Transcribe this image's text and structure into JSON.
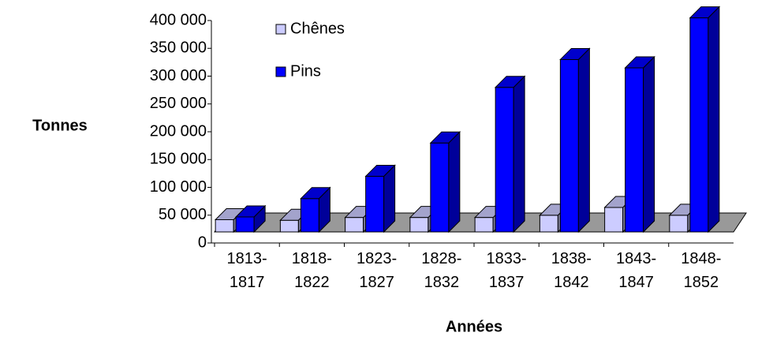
{
  "chart_data": {
    "type": "bar3d",
    "x_label": "Années",
    "y_label": "Tonnes",
    "categories": [
      "1813-1817",
      "1818-1822",
      "1823-1827",
      "1828-1832",
      "1833-1837",
      "1838-1842",
      "1843-1847",
      "1848-1852"
    ],
    "series": [
      {
        "name": "Chênes",
        "color": "#ccccff",
        "values": [
          22000,
          21000,
          26000,
          26000,
          26000,
          30000,
          44000,
          30000
        ]
      },
      {
        "name": "Pins",
        "color": "#0000ff",
        "values": [
          27000,
          60000,
          100000,
          160000,
          260000,
          310000,
          295000,
          385000
        ]
      }
    ],
    "ylim": [
      0,
      400000
    ],
    "yticks": [
      0,
      {
        "value": 50000,
        "label": "50 000"
      },
      {
        "value": 100000,
        "label": "100 000"
      },
      {
        "value": 150000,
        "label": "150 000"
      },
      {
        "value": 200000,
        "label": "200 000"
      },
      {
        "value": 250000,
        "label": "250 000"
      },
      {
        "value": 300000,
        "label": "300 000"
      },
      {
        "value": 350000,
        "label": "350 000"
      },
      {
        "value": 400000,
        "label": "400 000"
      }
    ],
    "legend": "top-left"
  }
}
